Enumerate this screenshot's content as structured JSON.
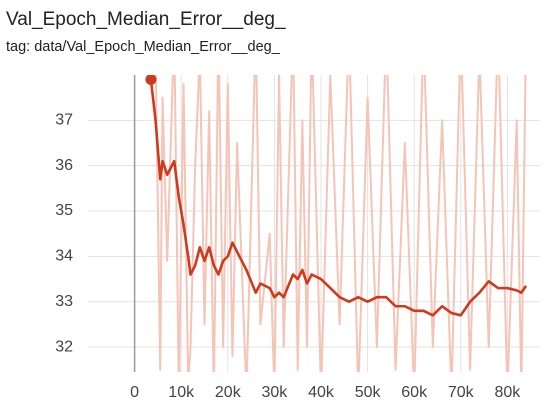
{
  "chart_data": {
    "type": "line",
    "title": "Val_Epoch_Median_Error__deg_",
    "subtitle": "tag: data/Val_Epoch_Median_Error__deg_",
    "x": [
      3500,
      4500,
      5500,
      6000,
      7000,
      8500,
      9500,
      10500,
      11500,
      12000,
      13000,
      14000,
      15000,
      16000,
      17000,
      18000,
      19000,
      20000,
      21000,
      22000,
      24000,
      26000,
      27000,
      29000,
      30000,
      31000,
      32000,
      34000,
      35000,
      36000,
      37000,
      38000,
      40000,
      42000,
      44000,
      46000,
      48000,
      50000,
      52000,
      54000,
      56000,
      58000,
      60000,
      62000,
      64000,
      66000,
      68000,
      70000,
      72000,
      74000,
      76000,
      78000,
      80000,
      82000,
      83000,
      84000
    ],
    "series": [
      {
        "color": "#f5c4b6",
        "values": [
          37.9,
          38.5,
          31.5,
          37.5,
          33.9,
          39,
          31,
          37.8,
          31.2,
          32,
          36,
          38.5,
          32.5,
          37.2,
          31,
          39,
          32,
          37.8,
          31.8,
          36.5,
          31,
          39,
          32.5,
          34.5,
          31,
          38,
          32,
          39,
          31.5,
          37,
          32,
          39,
          31,
          38,
          32.5,
          39,
          31,
          37.5,
          32,
          39,
          31.5,
          36.5,
          31,
          39,
          32,
          37,
          31,
          39,
          31.5,
          38.5,
          32,
          39,
          31,
          37,
          31,
          39
        ]
      },
      {
        "color": "#cf3a1c",
        "values": [
          37.9,
          37.0,
          35.7,
          36.1,
          35.8,
          36.1,
          35.3,
          34.7,
          34.0,
          33.6,
          33.8,
          34.2,
          33.9,
          34.2,
          33.8,
          33.6,
          33.9,
          34.0,
          34.3,
          34.1,
          33.7,
          33.2,
          33.4,
          33.3,
          33.1,
          33.2,
          33.1,
          33.6,
          33.5,
          33.7,
          33.4,
          33.6,
          33.5,
          33.3,
          33.1,
          33.0,
          33.1,
          33.0,
          33.1,
          33.1,
          32.9,
          32.9,
          32.8,
          32.8,
          32.7,
          32.9,
          32.75,
          32.7,
          33.0,
          33.2,
          33.45,
          33.3,
          33.3,
          33.25,
          33.2,
          33.35
        ]
      }
    ],
    "xlim": [
      -10000,
      87000
    ],
    "ylim": [
      31.45,
      38.0
    ],
    "xticks": [
      0,
      {
        "value": 10000,
        "label": "10k"
      },
      {
        "value": 20000,
        "label": "20k"
      },
      {
        "value": 30000,
        "label": "30k"
      },
      {
        "value": 40000,
        "label": "40k"
      },
      {
        "value": 50000,
        "label": "50k"
      },
      {
        "value": 60000,
        "label": "60k"
      },
      {
        "value": 70000,
        "label": "70k"
      },
      {
        "value": 80000,
        "label": "80k"
      }
    ],
    "yticks": [
      32,
      33,
      34,
      35,
      36,
      37
    ],
    "grid": true
  }
}
